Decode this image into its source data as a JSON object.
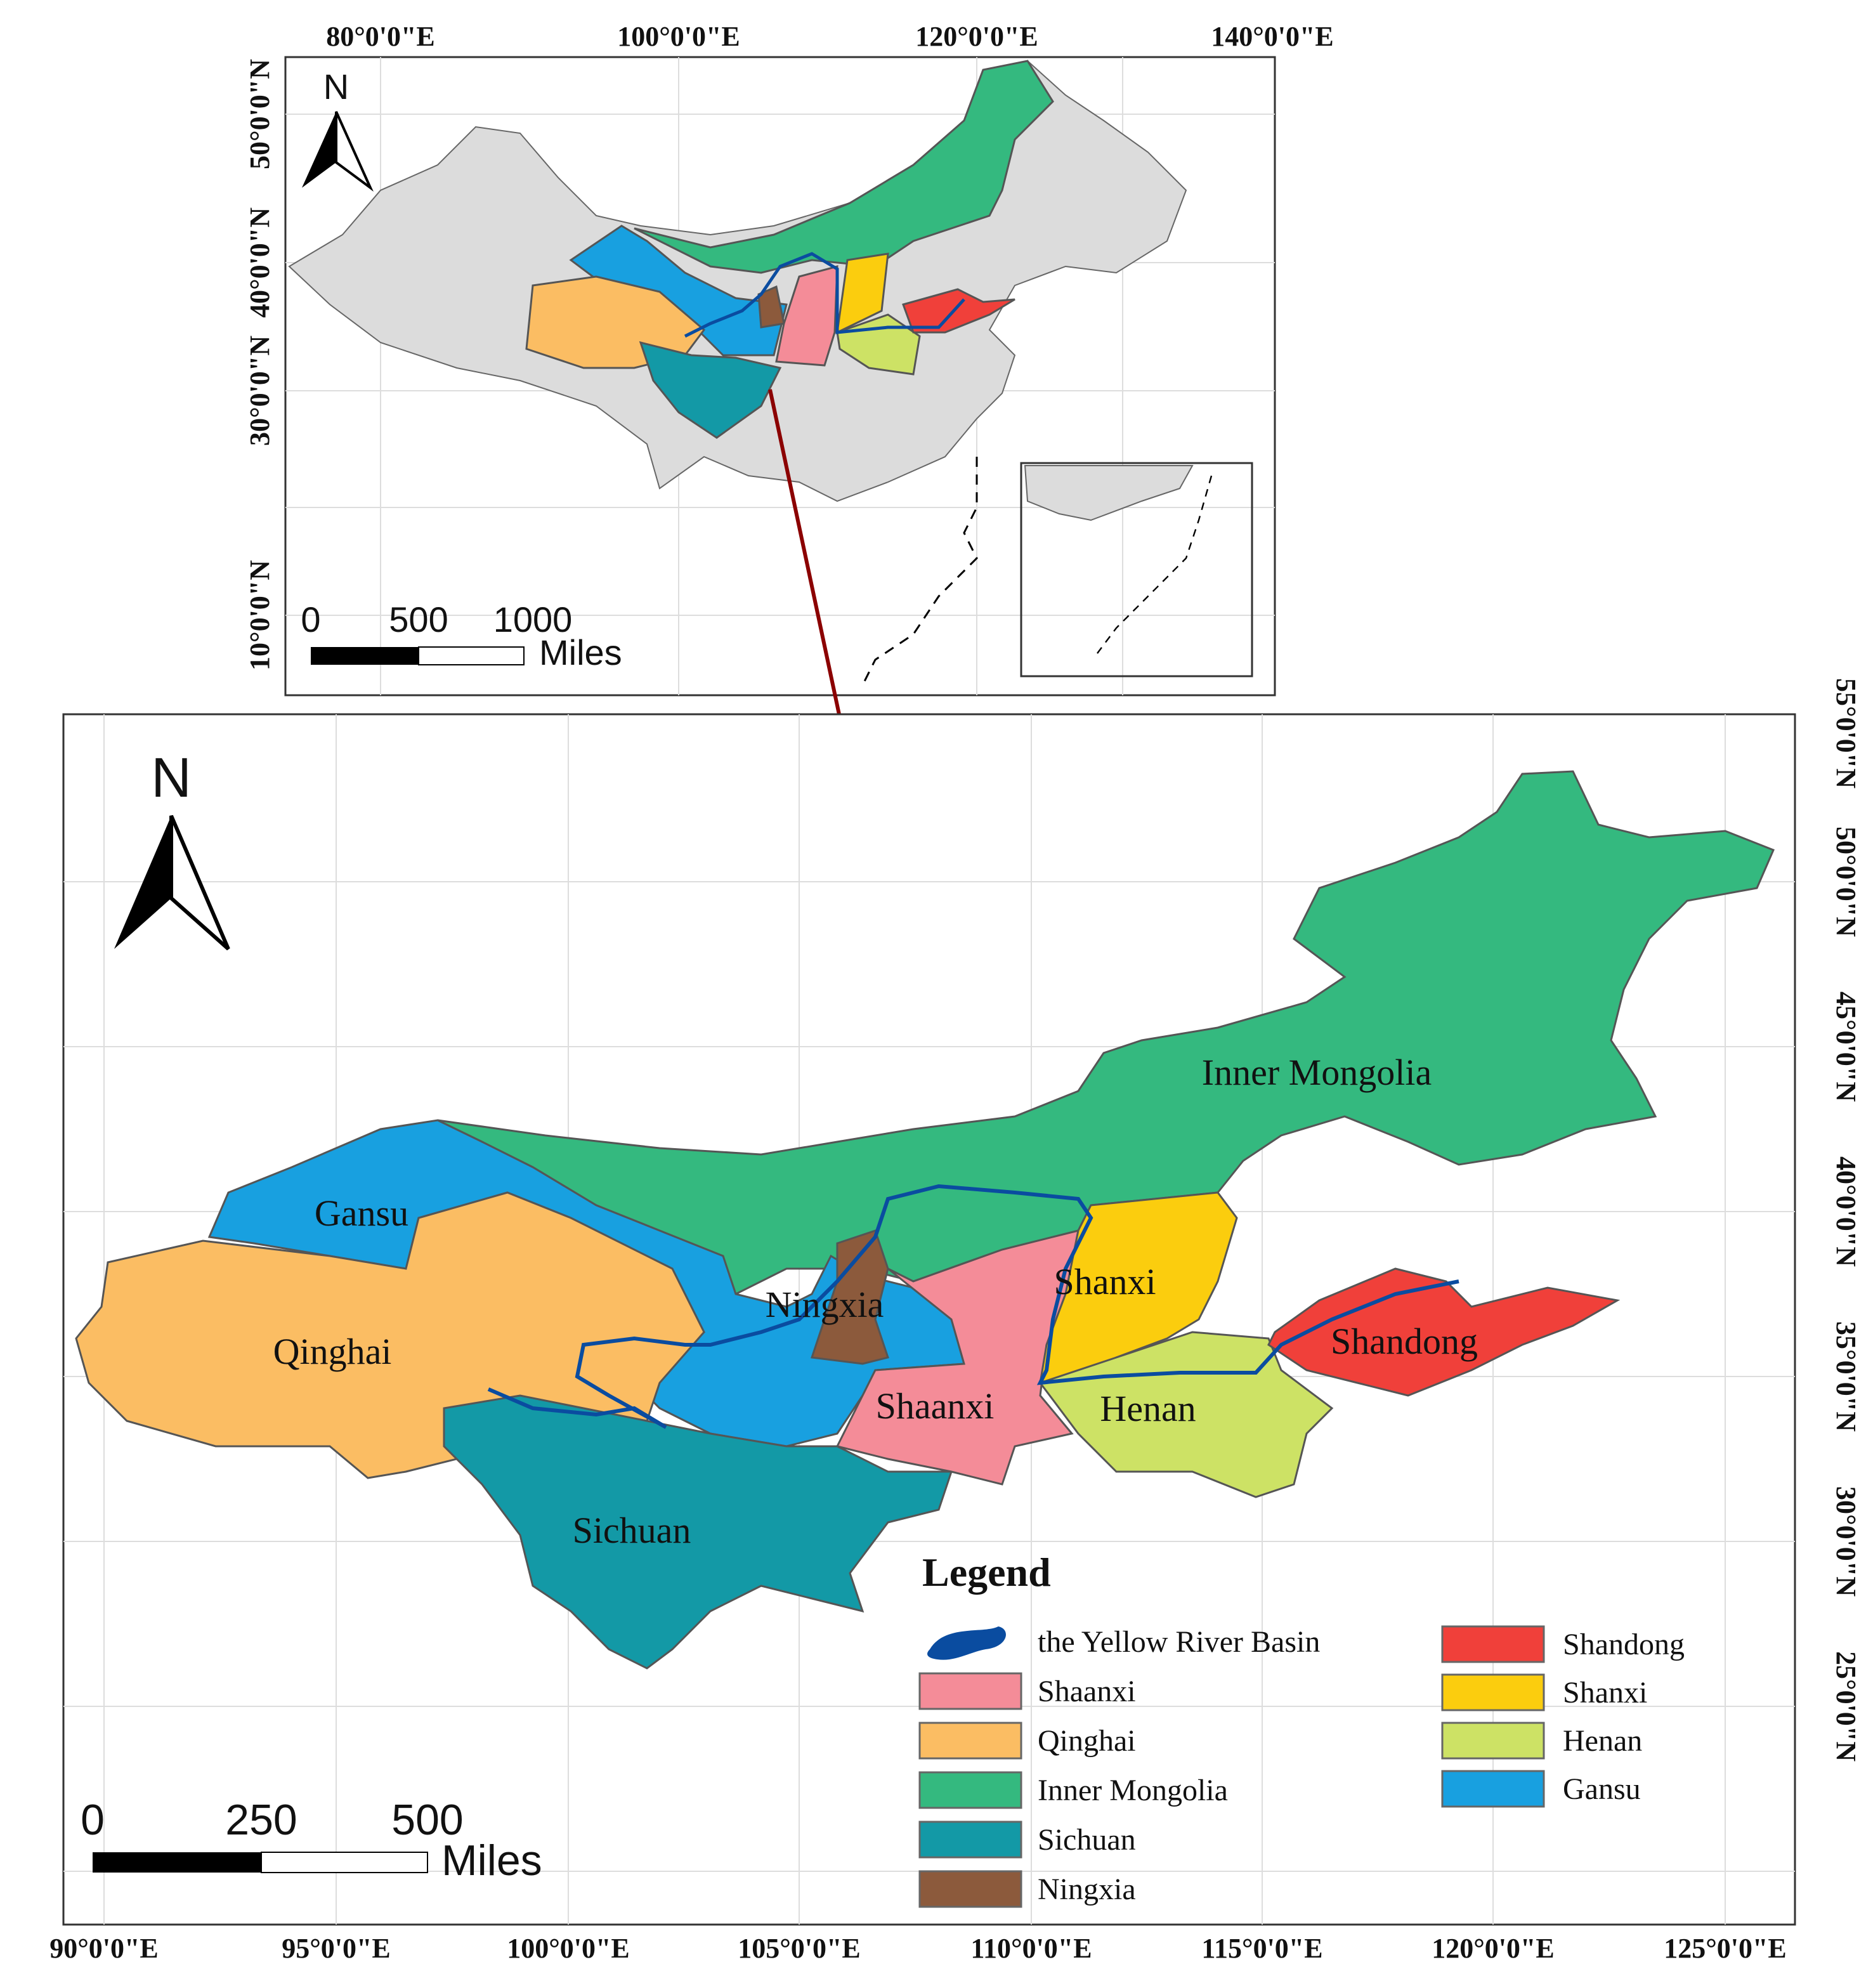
{
  "inset": {
    "x_labels": [
      "80°0'0\"E",
      "100°0'0\"E",
      "120°0'0\"E",
      "140°0'0\"E"
    ],
    "y_labels": [
      "50°0'0\"N",
      "40°0'0\"N",
      "30°0'0\"N",
      "10°0'0\"N"
    ],
    "north": "N",
    "scale": [
      "0",
      "500",
      "1000"
    ],
    "scale_unit": "Miles"
  },
  "main": {
    "x_labels": [
      "90°0'0\"E",
      "95°0'0\"E",
      "100°0'0\"E",
      "105°0'0\"E",
      "110°0'0\"E",
      "115°0'0\"E",
      "120°0'0\"E",
      "125°0'0\"E"
    ],
    "y_labels": [
      "55°0'0\"N",
      "50°0'0\"N",
      "45°0'0\"N",
      "40°0'0\"N",
      "35°0'0\"N",
      "30°0'0\"N",
      "25°0'0\"N"
    ],
    "north": "N",
    "scale": [
      "0",
      "250",
      "500"
    ],
    "scale_unit": "Miles",
    "regions": [
      "Inner Mongolia",
      "Gansu",
      "Ningxia",
      "Shanxi",
      "Qinghai",
      "Shandong",
      "Shaanxi",
      "Henan",
      "Sichuan"
    ]
  },
  "legend": {
    "title": "Legend",
    "items": [
      {
        "label": "the Yellow River Basin",
        "color": "#0a4ca0"
      },
      {
        "label": "Shaanxi",
        "color": "#f48c98"
      },
      {
        "label": "Qinghai",
        "color": "#fbbd63"
      },
      {
        "label": "Inner Mongolia",
        "color": "#34b97f"
      },
      {
        "label": "Sichuan",
        "color": "#1399a6"
      },
      {
        "label": "Ningxia",
        "color": "#8c5a3c"
      },
      {
        "label": "Shandong",
        "color": "#f0403a"
      },
      {
        "label": "Shanxi",
        "color": "#fbcd0e"
      },
      {
        "label": "Henan",
        "color": "#cde265"
      },
      {
        "label": "Gansu",
        "color": "#18a0e0"
      }
    ]
  }
}
